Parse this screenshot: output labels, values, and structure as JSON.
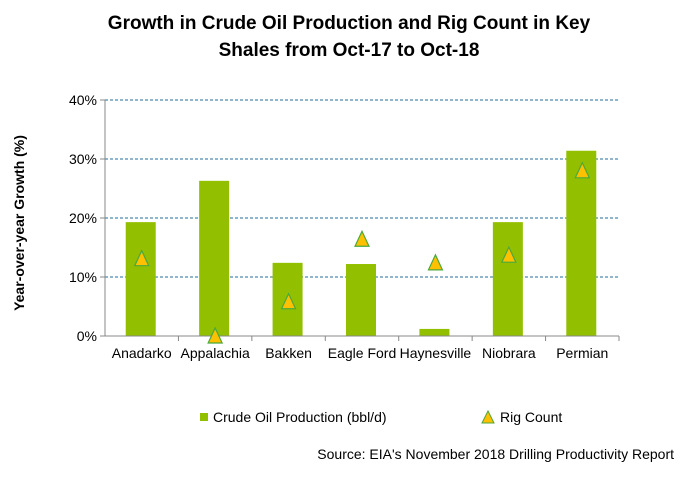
{
  "chart_data": {
    "type": "bar",
    "title_lines": [
      "Growth in Crude Oil Production and Rig Count in Key",
      "Shales from Oct-17 to Oct-18"
    ],
    "xlabel": "",
    "ylabel": "Year-over-year Growth (%)",
    "ylim": [
      0,
      40
    ],
    "yticks": [
      0,
      10,
      20,
      30,
      40
    ],
    "ytick_labels": [
      "0%",
      "10%",
      "20%",
      "30%",
      "40%"
    ],
    "grid": true,
    "categories": [
      "Anadarko",
      "Appalachia",
      "Bakken",
      "Eagle Ford",
      "Haynesville",
      "Niobrara",
      "Permian"
    ],
    "series": [
      {
        "name": "Crude Oil Production (bbl/d)",
        "type": "bar",
        "color": "#92C000",
        "values": [
          19.3,
          26.3,
          12.4,
          12.2,
          1.2,
          19.3,
          31.4
        ]
      },
      {
        "name": "Rig Count",
        "type": "marker-triangle",
        "color": "#FFC000",
        "edge": "#4BA83A",
        "values": [
          13.1,
          0.0,
          5.8,
          16.4,
          12.4,
          13.7,
          28.0
        ]
      }
    ],
    "legend_position": "bottom",
    "source": "Source: EIA's November 2018 Drilling Productivity Report"
  }
}
